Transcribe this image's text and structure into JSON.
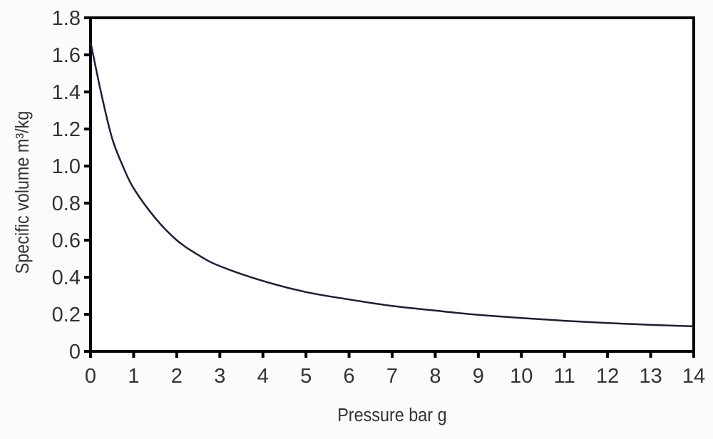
{
  "chart_data": {
    "type": "line",
    "title": "",
    "xlabel": "Pressure bar g",
    "ylabel": "Specific volume m³/kg",
    "xlim": [
      0,
      14
    ],
    "ylim": [
      0,
      1.8
    ],
    "xticks": [
      "0",
      "1",
      "2",
      "3",
      "4",
      "5",
      "6",
      "7",
      "8",
      "9",
      "10",
      "11",
      "12",
      "13",
      "14"
    ],
    "yticks": [
      "0",
      "0.2",
      "0.4",
      "0.6",
      "0.8",
      "1.0",
      "1.2",
      "1.4",
      "1.6",
      "1.8"
    ],
    "grid": false,
    "line_color": "#1f1d3a",
    "series": [
      {
        "x": [
          0,
          0.25,
          0.5,
          0.75,
          1,
          1.5,
          2,
          2.5,
          3,
          4,
          5,
          6,
          7,
          8,
          9,
          10,
          11,
          12,
          13,
          14
        ],
        "y": [
          1.67,
          1.39,
          1.15,
          1.0,
          0.88,
          0.72,
          0.6,
          0.52,
          0.46,
          0.38,
          0.32,
          0.28,
          0.245,
          0.22,
          0.197,
          0.18,
          0.165,
          0.153,
          0.143,
          0.135
        ]
      }
    ]
  }
}
